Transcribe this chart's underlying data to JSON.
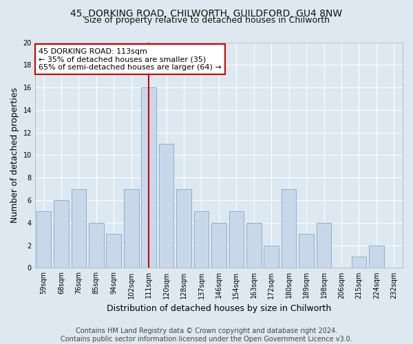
{
  "title_line1": "45, DORKING ROAD, CHILWORTH, GUILDFORD, GU4 8NW",
  "title_line2": "Size of property relative to detached houses in Chilworth",
  "xlabel": "Distribution of detached houses by size in Chilworth",
  "ylabel": "Number of detached properties",
  "categories": [
    "59sqm",
    "68sqm",
    "76sqm",
    "85sqm",
    "94sqm",
    "102sqm",
    "111sqm",
    "120sqm",
    "128sqm",
    "137sqm",
    "146sqm",
    "154sqm",
    "163sqm",
    "172sqm",
    "180sqm",
    "189sqm",
    "198sqm",
    "206sqm",
    "215sqm",
    "224sqm",
    "232sqm"
  ],
  "values": [
    5,
    6,
    7,
    4,
    3,
    7,
    16,
    11,
    7,
    5,
    4,
    5,
    4,
    2,
    7,
    3,
    4,
    0,
    1,
    2,
    0
  ],
  "bar_color": "#c8d8ea",
  "bar_edge_color": "#7aaac8",
  "vline_x": 6,
  "vline_color": "#cc0000",
  "annotation_text": "45 DORKING ROAD: 113sqm\n← 35% of detached houses are smaller (35)\n65% of semi-detached houses are larger (64) →",
  "annotation_box_color": "#ffffff",
  "annotation_box_edge_color": "#cc0000",
  "ylim": [
    0,
    20
  ],
  "yticks": [
    0,
    2,
    4,
    6,
    8,
    10,
    12,
    14,
    16,
    18,
    20
  ],
  "footer_text": "Contains HM Land Registry data © Crown copyright and database right 2024.\nContains public sector information licensed under the Open Government Licence v3.0.",
  "bg_color": "#dde8f0",
  "plot_bg_color": "#dde8f0",
  "grid_color": "#ffffff",
  "title_fontsize": 10,
  "subtitle_fontsize": 9,
  "axis_label_fontsize": 9,
  "tick_fontsize": 7,
  "footer_fontsize": 7,
  "annot_fontsize": 8
}
